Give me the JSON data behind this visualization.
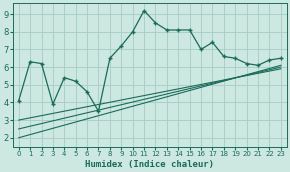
{
  "xlabel": "Humidex (Indice chaleur)",
  "bg_color": "#cce8e0",
  "grid_color": "#aad0c8",
  "line_color": "#1a6b5a",
  "xlim": [
    -0.5,
    23.5
  ],
  "ylim": [
    1.5,
    9.6
  ],
  "yticks": [
    2,
    3,
    4,
    5,
    6,
    7,
    8,
    9
  ],
  "xticks": [
    0,
    1,
    2,
    3,
    4,
    5,
    6,
    7,
    8,
    9,
    10,
    11,
    12,
    13,
    14,
    15,
    16,
    17,
    18,
    19,
    20,
    21,
    22,
    23
  ],
  "main_x": [
    0,
    1,
    2,
    3,
    4,
    5,
    6,
    7,
    8,
    9,
    10,
    11,
    12,
    13,
    14,
    15,
    16,
    17,
    18,
    19,
    20,
    21,
    22,
    23
  ],
  "main_y": [
    4.1,
    6.3,
    6.2,
    3.9,
    5.4,
    5.2,
    4.6,
    3.5,
    6.5,
    7.2,
    8.0,
    9.2,
    8.5,
    8.1,
    8.1,
    8.1,
    7.0,
    7.4,
    6.6,
    6.5,
    6.2,
    6.1,
    6.4,
    6.5
  ],
  "line2_x": [
    0,
    23
  ],
  "line2_y": [
    2.0,
    6.1
  ],
  "line3_x": [
    0,
    23
  ],
  "line3_y": [
    2.5,
    6.0
  ],
  "line4_x": [
    0,
    23
  ],
  "line4_y": [
    3.0,
    5.9
  ]
}
